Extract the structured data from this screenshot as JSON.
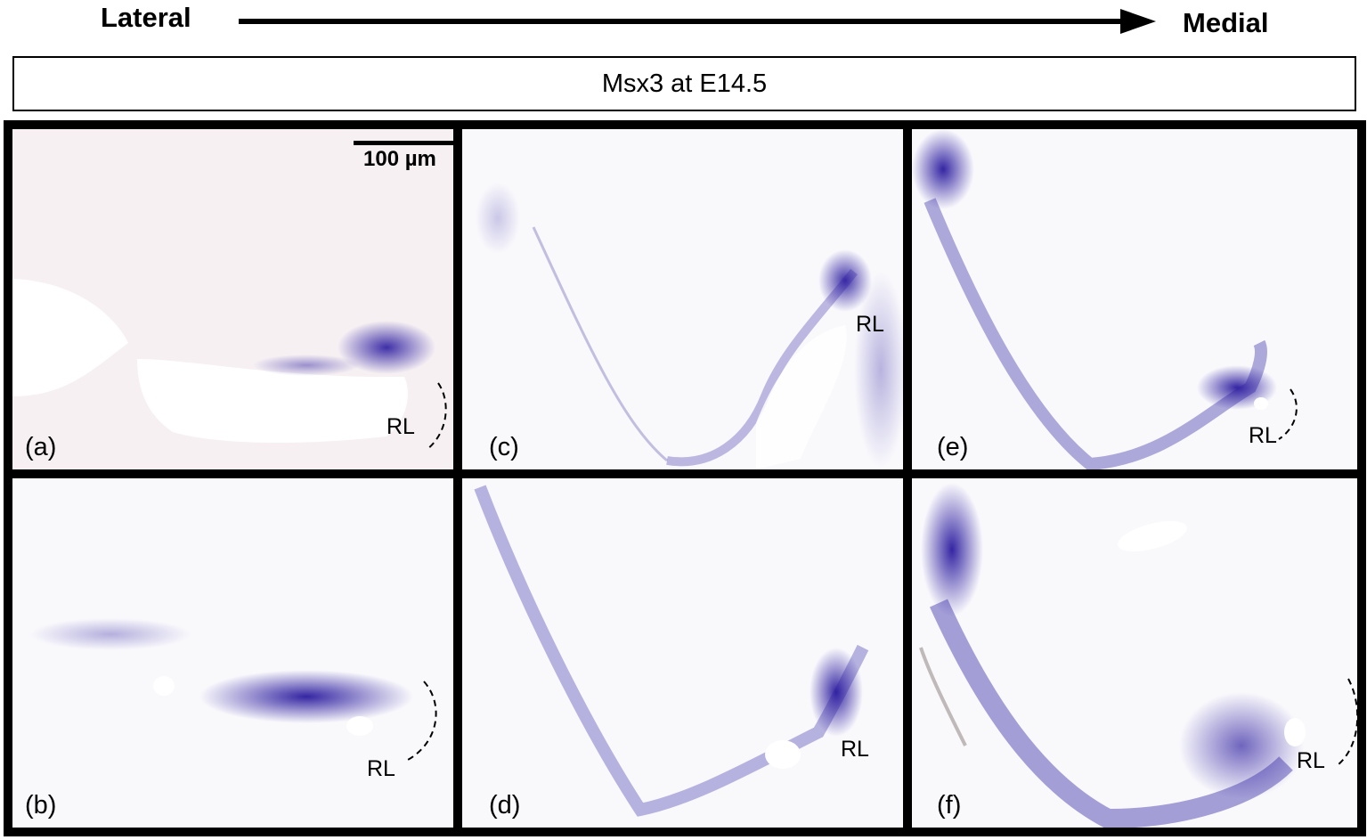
{
  "header": {
    "left_label": "Lateral",
    "right_label": "Medial",
    "title": "Msx3 at E14.5"
  },
  "scale_bar": {
    "label": "100 µm"
  },
  "panels": [
    {
      "letter": "(a)",
      "region_label": "RL"
    },
    {
      "letter": "(b)",
      "region_label": "RL"
    },
    {
      "letter": "(c)",
      "region_label": "RL"
    },
    {
      "letter": "(d)",
      "region_label": "RL"
    },
    {
      "letter": "(e)",
      "region_label": "RL"
    },
    {
      "letter": "(f)",
      "region_label": "RL"
    }
  ],
  "colors": {
    "stain": "#2a1a9e",
    "background_tissue": "#f4f2f8",
    "border": "#000000"
  }
}
